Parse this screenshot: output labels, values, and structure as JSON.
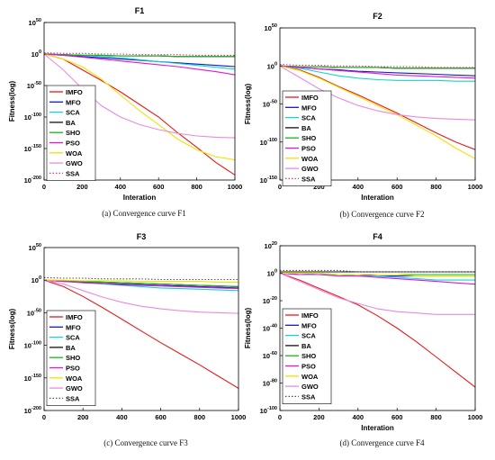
{
  "panels": [
    {
      "title": "F1",
      "caption": "(a)   Convergence curve F1",
      "xlabel": "Interation",
      "ylabel": "Fitness(log)",
      "xticks": [
        "0",
        "200",
        "400",
        "600",
        "800",
        "1000"
      ],
      "yticks": [
        {
          "base": "10",
          "exp": "50"
        },
        {
          "base": "10",
          "exp": "0"
        },
        {
          "base": "10",
          "exp": "-50"
        },
        {
          "base": "10",
          "exp": "-100"
        },
        {
          "base": "10",
          "exp": "-150"
        },
        {
          "base": "10",
          "exp": "-200"
        }
      ]
    },
    {
      "title": "F2",
      "caption": "(b) Convergence curve F2",
      "xlabel": "Interation",
      "ylabel": "Fitness(log)",
      "xticks": [
        "0",
        "200",
        "400",
        "600",
        "800",
        "1000"
      ],
      "yticks": [
        {
          "base": "10",
          "exp": "50"
        },
        {
          "base": "10",
          "exp": "0"
        },
        {
          "base": "10",
          "exp": "-50"
        },
        {
          "base": "10",
          "exp": "-100"
        },
        {
          "base": "10",
          "exp": "-150"
        }
      ]
    },
    {
      "title": "F3",
      "caption": "(c) Convergence curve F3",
      "xlabel": "",
      "ylabel": "Fitness(log)",
      "xticks": [
        "0",
        "200",
        "400",
        "600",
        "800",
        "1000"
      ],
      "yticks": [
        {
          "base": "10",
          "exp": "50"
        },
        {
          "base": "10",
          "exp": "0"
        },
        {
          "base": "10",
          "exp": "-50"
        },
        {
          "base": "10",
          "exp": "-100"
        },
        {
          "base": "10",
          "exp": "-150"
        },
        {
          "base": "10",
          "exp": "-200"
        }
      ]
    },
    {
      "title": "F4",
      "caption": "(d) Convergence curve F4",
      "xlabel": "Interation",
      "ylabel": "Fitness(log)",
      "xticks": [
        "0",
        "200",
        "400",
        "600",
        "800",
        "1000"
      ],
      "yticks": [
        {
          "base": "10",
          "exp": "20"
        },
        {
          "base": "10",
          "exp": "0"
        },
        {
          "base": "10",
          "exp": "-20"
        },
        {
          "base": "10",
          "exp": "-40"
        },
        {
          "base": "10",
          "exp": "-60"
        },
        {
          "base": "10",
          "exp": "-80"
        },
        {
          "base": "10",
          "exp": "-100"
        }
      ]
    }
  ],
  "chart_data": [
    {
      "type": "line",
      "title": "F1",
      "xlabel": "Interation",
      "ylabel": "Fitness(log)",
      "y_scale": "log",
      "xlim": [
        0,
        1000
      ],
      "ylim_exp": [
        -200,
        50
      ],
      "grid": false,
      "legend_position": "left",
      "x": [
        0,
        100,
        200,
        300,
        400,
        500,
        600,
        700,
        800,
        900,
        1000
      ],
      "series": [
        {
          "name": "IMFO",
          "color": "#e8191b",
          "style": "solid",
          "log10_values": [
            0,
            -8,
            -25,
            -42,
            -60,
            -80,
            -100,
            -125,
            -148,
            -172,
            -192
          ]
        },
        {
          "name": "MFO",
          "color": "#1a17c4",
          "style": "solid",
          "log10_values": [
            0,
            -2,
            -4,
            -6,
            -8,
            -10,
            -12,
            -14,
            -16,
            -18,
            -20
          ]
        },
        {
          "name": "SCA",
          "color": "#12d4d4",
          "style": "solid",
          "log10_values": [
            0,
            -1,
            -2,
            -4,
            -6,
            -9,
            -12,
            -15,
            -18,
            -21,
            -24
          ]
        },
        {
          "name": "BA",
          "color": "#111111",
          "style": "solid",
          "log10_values": [
            0,
            -1,
            -2,
            -2,
            -3,
            -3,
            -3,
            -4,
            -4,
            -4,
            -4
          ]
        },
        {
          "name": "SHO",
          "color": "#14b814",
          "style": "solid",
          "log10_values": [
            0,
            -1,
            -2,
            -2,
            -3,
            -3,
            -3,
            -4,
            -4,
            -4,
            -4
          ]
        },
        {
          "name": "PSO",
          "color": "#e016d8",
          "style": "solid",
          "log10_values": [
            0,
            -2,
            -5,
            -8,
            -11,
            -14,
            -17,
            -20,
            -24,
            -28,
            -33
          ]
        },
        {
          "name": "WOA",
          "color": "#f2e200",
          "style": "solid",
          "log10_values": [
            0,
            -8,
            -20,
            -40,
            -65,
            -90,
            -112,
            -135,
            -152,
            -163,
            -168
          ]
        },
        {
          "name": "GWO",
          "color": "#e88ae0",
          "style": "solid",
          "log10_values": [
            0,
            -25,
            -55,
            -82,
            -100,
            -112,
            -120,
            -126,
            -130,
            -132,
            -133
          ]
        },
        {
          "name": "SSA",
          "color": "#d63a8c",
          "style": "dotted",
          "log10_values": [
            2,
            1,
            1,
            0,
            0,
            -1,
            -1,
            -1,
            -2,
            -2,
            -2
          ]
        }
      ]
    },
    {
      "type": "line",
      "title": "F2",
      "xlabel": "Interation",
      "ylabel": "Fitness(log)",
      "y_scale": "log",
      "xlim": [
        0,
        1000
      ],
      "ylim_exp": [
        -150,
        50
      ],
      "grid": false,
      "legend_position": "left",
      "x": [
        0,
        100,
        200,
        300,
        400,
        500,
        600,
        700,
        800,
        900,
        1000
      ],
      "series": [
        {
          "name": "IMFO",
          "color": "#e8191b",
          "style": "solid",
          "log10_values": [
            0,
            -5,
            -15,
            -27,
            -38,
            -50,
            -62,
            -75,
            -88,
            -100,
            -110
          ]
        },
        {
          "name": "MFO",
          "color": "#1a17c4",
          "style": "solid",
          "log10_values": [
            0,
            -2,
            -4,
            -5,
            -7,
            -8,
            -9,
            -10,
            -11,
            -12,
            -13
          ]
        },
        {
          "name": "SCA",
          "color": "#12d4d4",
          "style": "solid",
          "log10_values": [
            0,
            -3,
            -8,
            -13,
            -16,
            -18,
            -19,
            -19,
            -19,
            -20,
            -20
          ]
        },
        {
          "name": "BA",
          "color": "#111111",
          "style": "solid",
          "log10_values": [
            0,
            -1,
            -1,
            -2,
            -2,
            -2,
            -3,
            -3,
            -3,
            -3,
            -3
          ]
        },
        {
          "name": "SHO",
          "color": "#14b814",
          "style": "solid",
          "log10_values": [
            0,
            -1,
            -1,
            -2,
            -2,
            -2,
            -3,
            -3,
            -3,
            -3,
            -3
          ]
        },
        {
          "name": "PSO",
          "color": "#e016d8",
          "style": "solid",
          "log10_values": [
            0,
            -2,
            -4,
            -6,
            -8,
            -10,
            -12,
            -13,
            -14,
            -15,
            -16
          ]
        },
        {
          "name": "WOA",
          "color": "#f2e200",
          "style": "solid",
          "log10_values": [
            0,
            -6,
            -16,
            -28,
            -40,
            -52,
            -64,
            -78,
            -92,
            -108,
            -122
          ]
        },
        {
          "name": "GWO",
          "color": "#e88ae0",
          "style": "solid",
          "log10_values": [
            0,
            -15,
            -30,
            -42,
            -52,
            -59,
            -64,
            -67,
            -69,
            -70,
            -71
          ]
        },
        {
          "name": "SSA",
          "color": "#d63a8c",
          "style": "dotted",
          "log10_values": [
            2,
            1,
            1,
            0,
            0,
            -1,
            -1,
            -1,
            -2,
            -2,
            -2
          ]
        }
      ]
    },
    {
      "type": "line",
      "title": "F3",
      "xlabel": "",
      "ylabel": "Fitness(log)",
      "y_scale": "log",
      "xlim": [
        0,
        1000
      ],
      "ylim_exp": [
        -200,
        50
      ],
      "grid": false,
      "legend_position": "left",
      "x": [
        0,
        100,
        200,
        300,
        400,
        500,
        600,
        700,
        800,
        900,
        1000
      ],
      "series": [
        {
          "name": "IMFO",
          "color": "#e8191b",
          "style": "solid",
          "log10_values": [
            0,
            -10,
            -25,
            -42,
            -60,
            -78,
            -96,
            -113,
            -130,
            -148,
            -166
          ]
        },
        {
          "name": "MFO",
          "color": "#1a17c4",
          "style": "solid",
          "log10_values": [
            0,
            -2,
            -3,
            -5,
            -6,
            -7,
            -8,
            -9,
            -10,
            -11,
            -12
          ]
        },
        {
          "name": "SCA",
          "color": "#12d4d4",
          "style": "solid",
          "log10_values": [
            0,
            -2,
            -4,
            -6,
            -8,
            -10,
            -12,
            -13,
            -14,
            -15,
            -16
          ]
        },
        {
          "name": "BA",
          "color": "#111111",
          "style": "solid",
          "log10_values": [
            0,
            -1,
            -2,
            -3,
            -4,
            -5,
            -6,
            -7,
            -8,
            -9,
            -10
          ]
        },
        {
          "name": "SHO",
          "color": "#14b814",
          "style": "solid",
          "log10_values": [
            0,
            -1,
            -2,
            -3,
            -4,
            -5,
            -6,
            -7,
            -8,
            -9,
            -10
          ]
        },
        {
          "name": "PSO",
          "color": "#e016d8",
          "style": "solid",
          "log10_values": [
            0,
            -2,
            -4,
            -5,
            -7,
            -8,
            -9,
            -10,
            -11,
            -12,
            -13
          ]
        },
        {
          "name": "WOA",
          "color": "#f2e200",
          "style": "solid",
          "log10_values": [
            0,
            0,
            -1,
            -1,
            -1,
            -2,
            -2,
            -2,
            -2,
            -3,
            -3
          ]
        },
        {
          "name": "GWO",
          "color": "#e88ae0",
          "style": "solid",
          "log10_values": [
            0,
            -6,
            -16,
            -26,
            -34,
            -40,
            -44,
            -47,
            -49,
            -50,
            -51
          ]
        },
        {
          "name": "SSA",
          "color": "#555555",
          "style": "dotted",
          "log10_values": [
            4,
            3,
            3,
            2,
            2,
            2,
            1,
            1,
            1,
            1,
            1
          ]
        }
      ]
    },
    {
      "type": "line",
      "title": "F4",
      "xlabel": "Interation",
      "ylabel": "Fitness(log)",
      "y_scale": "log",
      "xlim": [
        0,
        1000
      ],
      "ylim_exp": [
        -100,
        20
      ],
      "grid": false,
      "legend_position": "left",
      "x": [
        0,
        100,
        200,
        300,
        400,
        500,
        600,
        700,
        800,
        900,
        1000
      ],
      "series": [
        {
          "name": "IMFO",
          "color": "#e8191b",
          "style": "solid",
          "log10_values": [
            0,
            -5,
            -11,
            -17,
            -23,
            -31,
            -40,
            -50,
            -61,
            -72,
            -83
          ]
        },
        {
          "name": "MFO",
          "color": "#1a17c4",
          "style": "solid",
          "log10_values": [
            0,
            -1,
            -1,
            -1,
            -1,
            -2,
            -2,
            -2,
            -2,
            -2,
            -2
          ]
        },
        {
          "name": "SCA",
          "color": "#12d4d4",
          "style": "solid",
          "log10_values": [
            0,
            0,
            -1,
            -1,
            -2,
            -2,
            -3,
            -4,
            -5,
            -5,
            -5
          ]
        },
        {
          "name": "BA",
          "color": "#111111",
          "style": "solid",
          "log10_values": [
            1,
            1,
            1,
            1,
            1,
            1,
            1,
            1,
            1,
            1,
            1
          ]
        },
        {
          "name": "SHO",
          "color": "#14b814",
          "style": "solid",
          "log10_values": [
            0,
            0,
            0,
            -1,
            -1,
            -1,
            -1,
            -1,
            -1,
            -1,
            -1
          ]
        },
        {
          "name": "PSO",
          "color": "#e016d8",
          "style": "solid",
          "log10_values": [
            0,
            -1,
            -1,
            -2,
            -2,
            -3,
            -4,
            -5,
            -6,
            -7,
            -8
          ]
        },
        {
          "name": "WOA",
          "color": "#f2e200",
          "style": "solid",
          "log10_values": [
            0,
            0,
            0,
            -1,
            -1,
            -1,
            -1,
            -2,
            -2,
            -2,
            -2
          ]
        },
        {
          "name": "GWO",
          "color": "#e88ae0",
          "style": "solid",
          "log10_values": [
            0,
            -6,
            -12,
            -18,
            -22,
            -26,
            -28,
            -29,
            -30,
            -30,
            -30
          ]
        },
        {
          "name": "SSA",
          "color": "#555555",
          "style": "dotted",
          "log10_values": [
            2,
            2,
            2,
            2,
            1,
            1,
            1,
            1,
            1,
            1,
            1
          ]
        }
      ]
    }
  ]
}
